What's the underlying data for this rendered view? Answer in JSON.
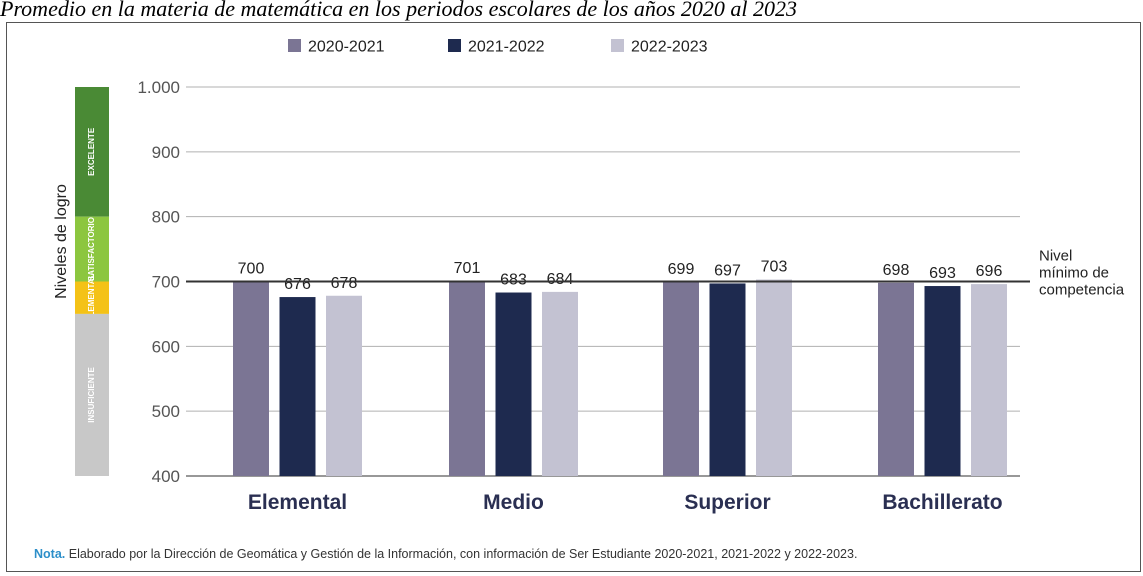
{
  "caption": "Promedio en la materia de matemática en los periodos escolares de los años 2020 al 2023",
  "note": {
    "label": "Nota.",
    "text": "Elaborado por la Dirección de Geomática y Gestión de la Información, con información de Ser Estudiante 2020-2021, 2021-2022 y 2022-2023."
  },
  "colors": {
    "s1": "#7b7594",
    "s2": "#1e2a4f",
    "s3": "#c3c2d2",
    "excelente": "#4a8a35",
    "satisfactorio": "#8cc63f",
    "elemental": "#f4c217",
    "insuficiente": "#c8c8c8"
  },
  "chart_data": {
    "type": "bar",
    "categories": [
      "Elemental",
      "Medio",
      "Superior",
      "Bachillerato"
    ],
    "series": [
      {
        "name": "2020-2021",
        "values": [
          700,
          701,
          699,
          698
        ]
      },
      {
        "name": "2021-2022",
        "values": [
          676,
          683,
          697,
          693
        ]
      },
      {
        "name": "2022-2023",
        "values": [
          678,
          684,
          703,
          696
        ]
      }
    ],
    "ylim": [
      400,
      1000
    ],
    "yticks": [
      "400",
      "500",
      "600",
      "700",
      "800",
      "900",
      "1.000"
    ],
    "ylabel": "Niveles de logro",
    "legend_position": "top",
    "reference_line": {
      "value": 700,
      "label_lines": [
        "Nivel",
        "mínimo de",
        "competencia"
      ]
    },
    "levels": [
      {
        "label": "EXCELENTE",
        "from": 800,
        "to": 1000,
        "color": "#4a8a35"
      },
      {
        "label": "SATISFACTORIO",
        "from": 700,
        "to": 800,
        "color": "#8cc63f"
      },
      {
        "label": "ELEMENTAL",
        "from": 650,
        "to": 700,
        "color": "#f4c217"
      },
      {
        "label": "INSUFICIENTE",
        "from": 400,
        "to": 650,
        "color": "#c8c8c8"
      }
    ]
  }
}
